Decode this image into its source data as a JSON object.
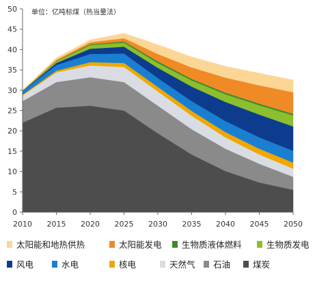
{
  "chart_data": {
    "type": "area",
    "stacked": true,
    "unit_label": "单位：亿吨标煤（热当量法）",
    "x": [
      2010,
      2015,
      2020,
      2025,
      2030,
      2035,
      2040,
      2045,
      2050
    ],
    "x_tick_labels": [
      "2010",
      "2015",
      "2020",
      "2025",
      "2030",
      "2035",
      "2040",
      "2045",
      "2050"
    ],
    "ylim": [
      0,
      50
    ],
    "y_tick_labels": [
      "0",
      "5",
      "10",
      "15",
      "20",
      "25",
      "30",
      "35",
      "40",
      "45",
      "50"
    ],
    "grid": false,
    "legend_position": "bottom",
    "series": [
      {
        "name": "煤炭",
        "color": "#4d4d4d",
        "values": [
          22,
          25.7,
          26.2,
          25,
          19.4,
          14.2,
          10.1,
          7.3,
          5.5
        ]
      },
      {
        "name": "石油",
        "color": "#8a8a8a",
        "values": [
          5.3,
          6.3,
          7,
          7,
          6.8,
          6.2,
          5.5,
          4.6,
          3.2
        ]
      },
      {
        "name": "天然气",
        "color": "#d9dde3",
        "values": [
          1.4,
          2.4,
          2.9,
          3.7,
          3.5,
          3.3,
          2.8,
          2.3,
          2.0
        ]
      },
      {
        "name": "核电",
        "color": "#f0a800",
        "values": [
          0.2,
          0.4,
          0.8,
          1.0,
          1.1,
          1.2,
          1.3,
          1.4,
          1.5
        ]
      },
      {
        "name": "水电",
        "color": "#1a7fd1",
        "values": [
          0.9,
          1.4,
          2.0,
          2.3,
          2.2,
          2.4,
          2.7,
          2.8,
          2.9
        ]
      },
      {
        "name": "风电",
        "color": "#0d3c8f",
        "values": [
          0.05,
          0.5,
          1.3,
          1.7,
          2.5,
          3.6,
          4.7,
          5.6,
          6.0
        ]
      },
      {
        "name": "生物质发电",
        "color": "#8cbf2d",
        "values": [
          0.05,
          0.4,
          0.9,
          1.0,
          1.2,
          1.5,
          1.9,
          2.3,
          2.7
        ]
      },
      {
        "name": "生物质液体燃料",
        "color": "#3d8a2e",
        "values": [
          0,
          0.1,
          0.2,
          0.3,
          0.4,
          0.4,
          0.4,
          0.4,
          0.4
        ]
      },
      {
        "name": "太阳能发电",
        "color": "#ef8a26",
        "values": [
          0,
          0.3,
          0.5,
          0.8,
          1.8,
          2.8,
          3.7,
          4.5,
          5.3
        ]
      },
      {
        "name": "太阳能和地热供热",
        "color": "#fcd695",
        "values": [
          0.1,
          0.5,
          0.6,
          1.2,
          2.3,
          2.6,
          2.8,
          3.0,
          3.0
        ]
      }
    ]
  },
  "legend_rows": [
    [
      "太阳能和地热供热",
      "太阳能发电",
      "生物质液体燃料",
      "生物质发电"
    ],
    [
      "风电",
      "水电",
      "核电",
      "天然气",
      "石油",
      "煤炭"
    ]
  ]
}
